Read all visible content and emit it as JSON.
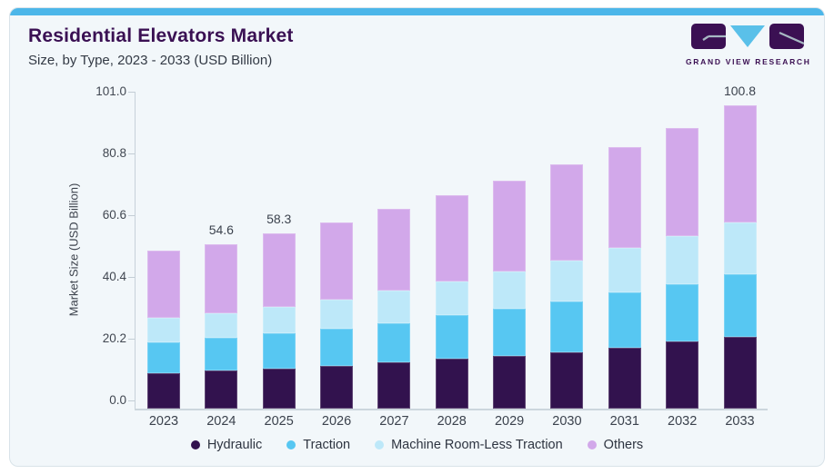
{
  "header": {
    "title": "Residential Elevators Market",
    "subtitle": "Size, by Type, 2023 - 2033 (USD Billion)",
    "logo_text": "GRAND VIEW RESEARCH"
  },
  "colors": {
    "accent_stripe": "#4cb6e9",
    "card_background": "#f2f7fa",
    "title_text": "#3a1053",
    "axis_line": "#c7d1d9",
    "hydraulic": "#32124e",
    "traction": "#57c7f2",
    "mrl_traction": "#bde8f9",
    "others": "#d2a8ea"
  },
  "chart_data": {
    "type": "bar",
    "stacked": true,
    "title": "Residential Elevators Market",
    "subtitle": "Size, by Type, 2023 - 2033 (USD Billion)",
    "categories": [
      "2023",
      "2024",
      "2025",
      "2026",
      "2027",
      "2028",
      "2029",
      "2030",
      "2031",
      "2032",
      "2033"
    ],
    "series": [
      {
        "name": "Hydraulic",
        "color": "#32124e",
        "values": [
          11.9,
          12.6,
          13.4,
          14.2,
          15.3,
          16.7,
          17.4,
          18.8,
          20.2,
          22.2,
          23.8
        ]
      },
      {
        "name": "Traction",
        "color": "#57c7f2",
        "values": [
          10.2,
          10.8,
          11.6,
          12.4,
          13.1,
          14.3,
          15.8,
          16.7,
          18.3,
          19.1,
          20.8
        ]
      },
      {
        "name": "Machine Room-Less Traction",
        "color": "#bde8f9",
        "values": [
          8.0,
          8.4,
          8.8,
          9.5,
          10.9,
          11.4,
          12.3,
          13.8,
          14.9,
          16.1,
          17.2
        ]
      },
      {
        "name": "Others",
        "color": "#d2a8ea",
        "values": [
          22.3,
          22.8,
          24.5,
          25.8,
          27.0,
          28.4,
          30.2,
          32.0,
          33.6,
          35.9,
          39.0
        ]
      }
    ],
    "totals": [
      52.4,
      54.6,
      58.3,
      61.9,
      66.3,
      70.8,
      75.7,
      81.3,
      87.0,
      93.3,
      100.8
    ],
    "bar_labels": [
      "",
      "54.6",
      "58.3",
      "",
      "",
      "",
      "",
      "",
      "",
      "",
      "100.8"
    ],
    "xlabel": "",
    "ylabel": "Market Size (USD Billion)",
    "yticks": [
      "0.0",
      "20.2",
      "40.4",
      "60.6",
      "80.8",
      "101.0"
    ],
    "ylim": [
      0,
      101
    ],
    "grid": false,
    "legend_position": "bottom"
  }
}
